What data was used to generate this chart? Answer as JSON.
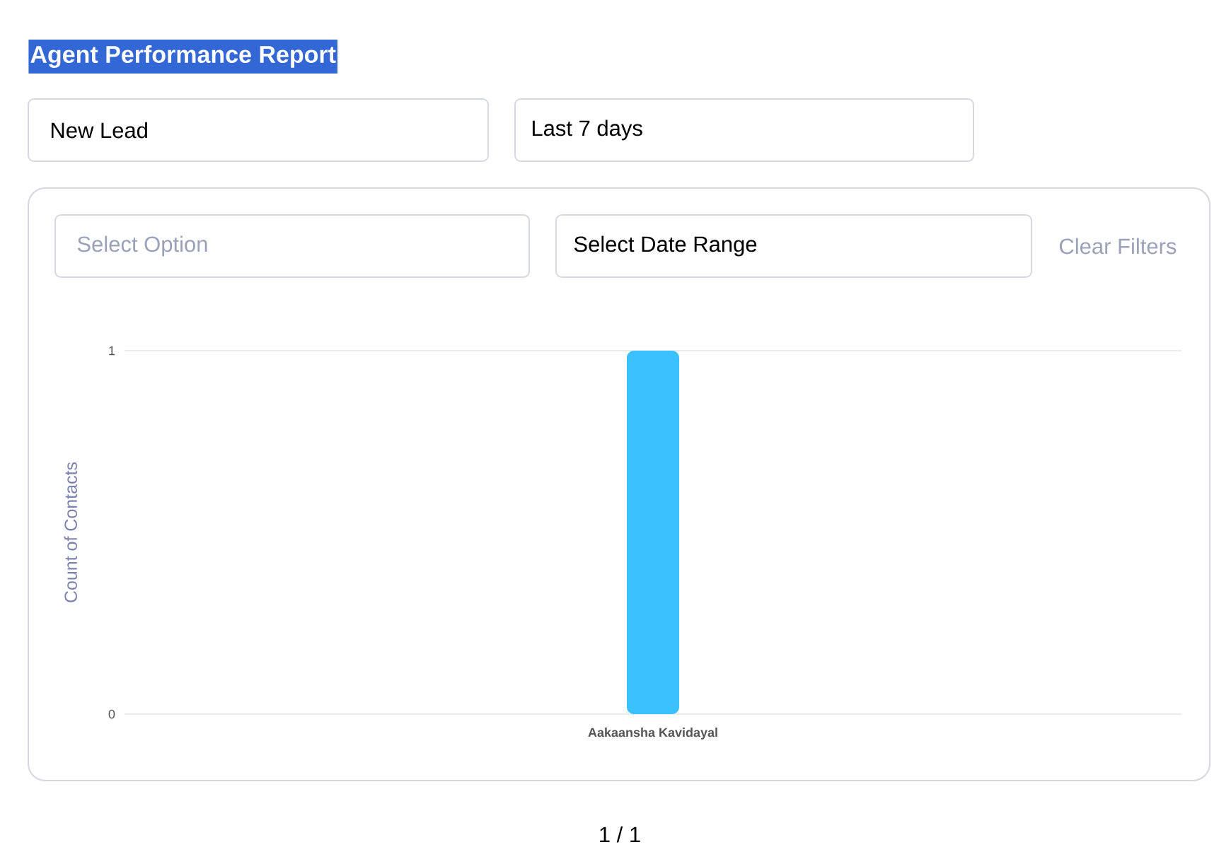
{
  "chart_data": {
    "type": "bar",
    "title": "Agent Performance Report",
    "ylabel": "Count of Contacts",
    "categories": [
      "Aakaansha Kavidayal"
    ],
    "values": [
      1
    ],
    "color": "#38c1fc",
    "ylim": [
      0,
      1
    ],
    "yticks": [
      0,
      1
    ],
    "grid": "y",
    "annotations": [
      "New Lead",
      "Last 7 days",
      "Select Option",
      "Select Date Range",
      "Clear Filters",
      "1 / 1"
    ]
  }
}
